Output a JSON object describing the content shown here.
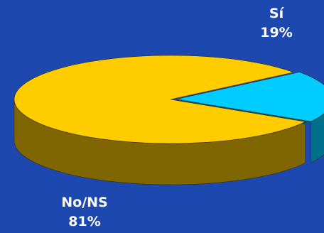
{
  "chart_data": {
    "type": "pie",
    "style": "3d",
    "background_color": "#1d48b0",
    "slices": [
      {
        "label": "Sí",
        "value": 19,
        "value_label": "19%",
        "color": "#00ccff",
        "side_color": "#006f8c",
        "exploded": true
      },
      {
        "label": "No/NS",
        "value": 81,
        "value_label": "81%",
        "color": "#ffcc00",
        "side_color": "#806600"
      }
    ]
  }
}
